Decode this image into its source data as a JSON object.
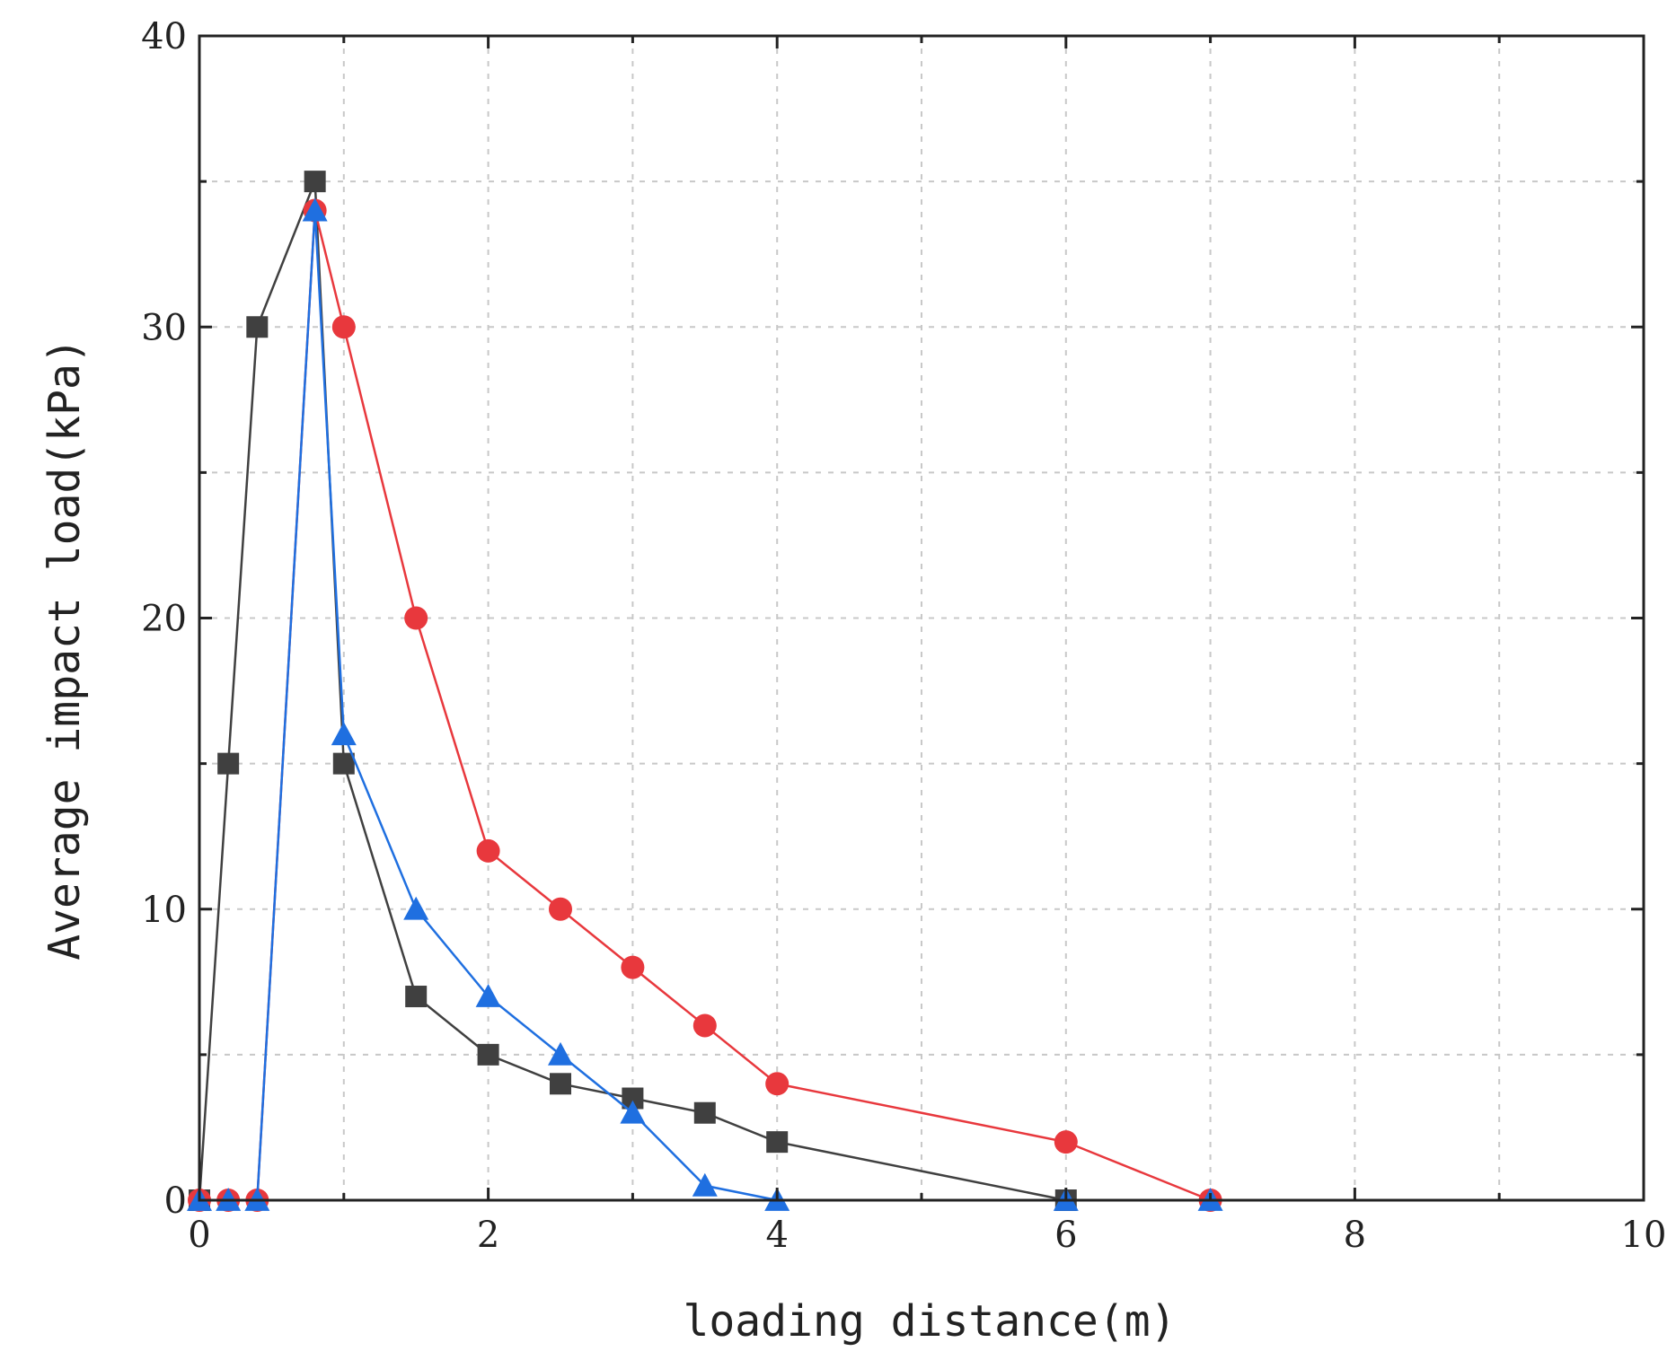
{
  "chart_data": {
    "type": "line",
    "xlabel": "loading distance(m)",
    "ylabel": "Average impact load(kPa)",
    "xlim": [
      0,
      10
    ],
    "ylim": [
      0,
      40
    ],
    "xticks": [
      0,
      2,
      4,
      6,
      8,
      10
    ],
    "yticks": [
      0,
      10,
      20,
      30,
      40
    ],
    "x_minor_step": 1,
    "y_minor_step": 5,
    "grid": true,
    "legend": "none",
    "series": [
      {
        "color": "#404040",
        "marker": "square",
        "points": [
          [
            0,
            0
          ],
          [
            0.2,
            15
          ],
          [
            0.4,
            30
          ],
          [
            0.8,
            35
          ],
          [
            1.0,
            15
          ],
          [
            1.5,
            7
          ],
          [
            2.0,
            5
          ],
          [
            2.5,
            4
          ],
          [
            3.0,
            3.5
          ],
          [
            3.5,
            3
          ],
          [
            4.0,
            2
          ],
          [
            6.0,
            0
          ]
        ]
      },
      {
        "color": "#e8383d",
        "marker": "circle",
        "points": [
          [
            0,
            0
          ],
          [
            0.2,
            0
          ],
          [
            0.4,
            0
          ],
          [
            0.8,
            34
          ],
          [
            1.0,
            30
          ],
          [
            1.5,
            20
          ],
          [
            2.0,
            12
          ],
          [
            2.5,
            10
          ],
          [
            3.0,
            8
          ],
          [
            3.5,
            6
          ],
          [
            4.0,
            4
          ],
          [
            6.0,
            2
          ],
          [
            7.0,
            0
          ]
        ]
      },
      {
        "color": "#1f6fe0",
        "marker": "triangle",
        "points": [
          [
            0,
            0
          ],
          [
            0.2,
            0
          ],
          [
            0.4,
            0
          ],
          [
            0.8,
            34
          ],
          [
            1.0,
            16
          ],
          [
            1.5,
            10
          ],
          [
            2.0,
            7
          ],
          [
            2.5,
            5
          ],
          [
            3.0,
            3
          ],
          [
            3.5,
            0.5
          ],
          [
            4.0,
            0
          ],
          [
            6.0,
            0
          ],
          [
            7.0,
            0
          ]
        ]
      }
    ]
  }
}
